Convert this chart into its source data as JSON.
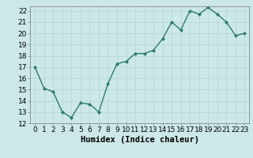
{
  "x": [
    0,
    1,
    2,
    3,
    4,
    5,
    6,
    7,
    8,
    9,
    10,
    11,
    12,
    13,
    14,
    15,
    16,
    17,
    18,
    19,
    20,
    21,
    22,
    23
  ],
  "y": [
    17.0,
    15.1,
    14.8,
    13.0,
    12.5,
    13.8,
    13.7,
    13.0,
    15.5,
    17.3,
    17.5,
    18.2,
    18.2,
    18.5,
    19.5,
    21.0,
    20.3,
    22.0,
    21.7,
    22.3,
    21.7,
    21.0,
    19.8,
    20.0
  ],
  "xlabel": "Humidex (Indice chaleur)",
  "ylim": [
    12,
    22.4
  ],
  "xlim": [
    -0.5,
    23.5
  ],
  "yticks": [
    12,
    13,
    14,
    15,
    16,
    17,
    18,
    19,
    20,
    21,
    22
  ],
  "xtick_labels": [
    "0",
    "1",
    "2",
    "3",
    "4",
    "5",
    "6",
    "7",
    "8",
    "9",
    "10",
    "11",
    "12",
    "13",
    "14",
    "15",
    "16",
    "17",
    "18",
    "19",
    "20",
    "21",
    "22",
    "23"
  ],
  "line_color": "#2d7a6a",
  "marker_color": "#2d7a6a",
  "bg_color": "#cce8e8",
  "grid_color": "#b8d8d8",
  "tick_fontsize": 6.5,
  "label_fontsize": 7.5
}
